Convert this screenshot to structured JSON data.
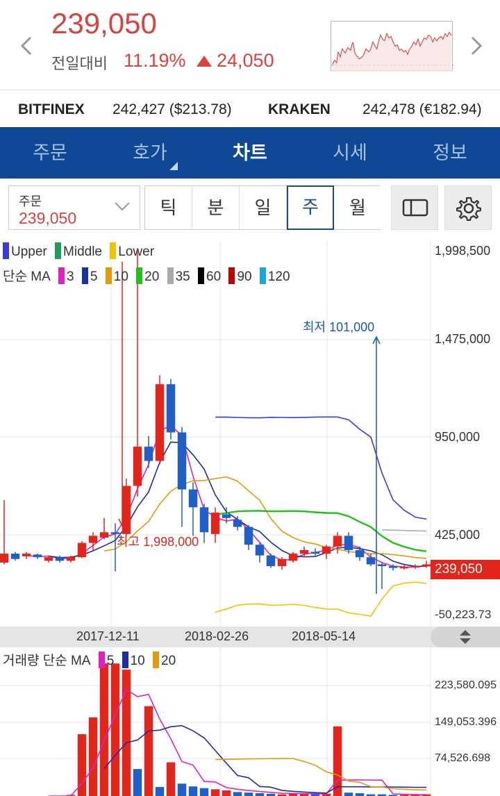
{
  "header": {
    "price": "239,050",
    "change_label": "전일대비",
    "change_pct": "11.19%",
    "change_amount": "24,050"
  },
  "exchanges": [
    {
      "name": "BITFINEX",
      "value": "242,427 ($213.78)"
    },
    {
      "name": "KRAKEN",
      "value": "242,478 (€182.94)"
    }
  ],
  "tabs": [
    {
      "label": "주문"
    },
    {
      "label": "호가"
    },
    {
      "label": "차트"
    },
    {
      "label": "시세"
    },
    {
      "label": "정보"
    }
  ],
  "order": {
    "label": "주문",
    "value": "239,050"
  },
  "periods": [
    "틱",
    "분",
    "일",
    "주",
    "월"
  ],
  "active_period": "주",
  "legend": {
    "bollinger": [
      {
        "name": "Upper",
        "color": "#3a3ad8"
      },
      {
        "name": "Middle",
        "color": "#1f9e5a"
      },
      {
        "name": "Lower",
        "color": "#f0c400"
      }
    ],
    "ma_label": "단순 MA",
    "ma": [
      {
        "name": "3",
        "color": "#e020c0"
      },
      {
        "name": "5",
        "color": "#1a2fa0"
      },
      {
        "name": "10",
        "color": "#e39a0a"
      },
      {
        "name": "20",
        "color": "#22c01a"
      },
      {
        "name": "35",
        "color": "#aaaaaa"
      },
      {
        "name": "60",
        "color": "#000000"
      },
      {
        "name": "90",
        "color": "#c00000"
      },
      {
        "name": "120",
        "color": "#19a6e6"
      }
    ]
  },
  "annotations": {
    "low": "최저 101,000",
    "high": "최고 1,998,000"
  },
  "current_price_tag": "239,050",
  "dates": [
    "2017-12-11",
    "2018-02-26",
    "2018-05-14"
  ],
  "volume_legend": {
    "label": "거래량 단순 MA",
    "ma": [
      {
        "name": "5",
        "color": "#e020c0"
      },
      {
        "name": "10",
        "color": "#1a2fa0"
      },
      {
        "name": "20",
        "color": "#e39a0a"
      }
    ]
  },
  "chart_data": {
    "type": "candlestick",
    "y_ticks": [
      "1,998,500",
      "1,475,000",
      "950,000",
      "425,000",
      "-50,223.73"
    ],
    "ylim": [
      -50223.73,
      1998500
    ],
    "candles": [
      {
        "o": 250000,
        "c": 300000,
        "h": 600000,
        "l": 240000,
        "up": true
      },
      {
        "o": 300000,
        "c": 270000,
        "h": 310000,
        "l": 260000,
        "up": false
      },
      {
        "o": 285000,
        "c": 300000,
        "h": 310000,
        "l": 270000,
        "up": true
      },
      {
        "o": 295000,
        "c": 280000,
        "h": 300000,
        "l": 270000,
        "up": false
      },
      {
        "o": 260000,
        "c": 280000,
        "h": 290000,
        "l": 250000,
        "up": true
      },
      {
        "o": 280000,
        "c": 260000,
        "h": 290000,
        "l": 250000,
        "up": false
      },
      {
        "o": 260000,
        "c": 280000,
        "h": 290000,
        "l": 250000,
        "up": true
      },
      {
        "o": 280000,
        "c": 360000,
        "h": 370000,
        "l": 275000,
        "up": true
      },
      {
        "o": 360000,
        "c": 400000,
        "h": 420000,
        "l": 320000,
        "up": true
      },
      {
        "o": 390000,
        "c": 420000,
        "h": 500000,
        "l": 380000,
        "up": true
      },
      {
        "o": 420000,
        "c": 410000,
        "h": 470000,
        "l": 200000,
        "up": false
      },
      {
        "o": 410000,
        "c": 680000,
        "h": 720000,
        "l": 400000,
        "up": true
      },
      {
        "o": 680000,
        "c": 900000,
        "h": 1998000,
        "l": 620000,
        "up": true
      },
      {
        "o": 900000,
        "c": 820000,
        "h": 960000,
        "l": 780000,
        "up": false
      },
      {
        "o": 820000,
        "c": 1250000,
        "h": 1300000,
        "l": 800000,
        "up": true
      },
      {
        "o": 1250000,
        "c": 980000,
        "h": 1280000,
        "l": 940000,
        "up": false
      },
      {
        "o": 980000,
        "c": 660000,
        "h": 1010000,
        "l": 450000,
        "up": false
      },
      {
        "o": 660000,
        "c": 560000,
        "h": 700000,
        "l": 400000,
        "up": false
      },
      {
        "o": 560000,
        "c": 420000,
        "h": 580000,
        "l": 360000,
        "up": false
      },
      {
        "o": 410000,
        "c": 530000,
        "h": 560000,
        "l": 360000,
        "up": true
      },
      {
        "o": 520000,
        "c": 500000,
        "h": 560000,
        "l": 470000,
        "up": false
      },
      {
        "o": 490000,
        "c": 450000,
        "h": 510000,
        "l": 430000,
        "up": false
      },
      {
        "o": 450000,
        "c": 350000,
        "h": 460000,
        "l": 320000,
        "up": false
      },
      {
        "o": 350000,
        "c": 290000,
        "h": 360000,
        "l": 250000,
        "up": false
      },
      {
        "o": 290000,
        "c": 230000,
        "h": 300000,
        "l": 220000,
        "up": false
      },
      {
        "o": 230000,
        "c": 270000,
        "h": 280000,
        "l": 210000,
        "up": true
      },
      {
        "o": 260000,
        "c": 300000,
        "h": 310000,
        "l": 250000,
        "up": true
      },
      {
        "o": 300000,
        "c": 320000,
        "h": 340000,
        "l": 280000,
        "up": true
      },
      {
        "o": 310000,
        "c": 300000,
        "h": 330000,
        "l": 290000,
        "up": false
      },
      {
        "o": 300000,
        "c": 340000,
        "h": 350000,
        "l": 270000,
        "up": true
      },
      {
        "o": 340000,
        "c": 400000,
        "h": 420000,
        "l": 300000,
        "up": true
      },
      {
        "o": 400000,
        "c": 320000,
        "h": 420000,
        "l": 300000,
        "up": false
      },
      {
        "o": 320000,
        "c": 280000,
        "h": 340000,
        "l": 260000,
        "up": false
      },
      {
        "o": 280000,
        "c": 240000,
        "h": 300000,
        "l": 230000,
        "up": false
      },
      {
        "o": 240000,
        "c": 230000,
        "h": 250000,
        "l": 101000,
        "up": false
      },
      {
        "o": 230000,
        "c": 220000,
        "h": 240000,
        "l": 205000,
        "up": false
      },
      {
        "o": 220000,
        "c": 225000,
        "h": 235000,
        "l": 210000,
        "up": true
      },
      {
        "o": 225000,
        "c": 230000,
        "h": 240000,
        "l": 215000,
        "up": true
      },
      {
        "o": 228000,
        "c": 240000,
        "h": 260000,
        "l": 220000,
        "up": true
      }
    ],
    "volume_y_ticks": [
      "223,580.095",
      "149,053.396",
      "74,526.698"
    ],
    "volume_ylim": [
      0,
      240000
    ],
    "volumes": [
      {
        "v": 0,
        "up": true
      },
      {
        "v": 0,
        "up": true
      },
      {
        "v": 0,
        "up": true
      },
      {
        "v": 0,
        "up": true
      },
      {
        "v": 0,
        "up": true
      },
      {
        "v": 0,
        "up": true
      },
      {
        "v": 2000,
        "up": true
      },
      {
        "v": 110000,
        "up": true
      },
      {
        "v": 140000,
        "up": true
      },
      {
        "v": 236000,
        "up": true
      },
      {
        "v": 236000,
        "up": true
      },
      {
        "v": 225000,
        "up": true
      },
      {
        "v": 48000,
        "up": false
      },
      {
        "v": 160000,
        "up": true
      },
      {
        "v": 16000,
        "up": false
      },
      {
        "v": 60000,
        "up": true
      },
      {
        "v": 22000,
        "up": false
      },
      {
        "v": 17000,
        "up": false
      },
      {
        "v": 14000,
        "up": false
      },
      {
        "v": 12000,
        "up": true
      },
      {
        "v": 10000,
        "up": true
      },
      {
        "v": 7000,
        "up": false
      },
      {
        "v": 6000,
        "up": false
      },
      {
        "v": 5000,
        "up": false
      },
      {
        "v": 4000,
        "up": false
      },
      {
        "v": 3000,
        "up": true
      },
      {
        "v": 5000,
        "up": true
      },
      {
        "v": 4000,
        "up": true
      },
      {
        "v": 4000,
        "up": false
      },
      {
        "v": 4000,
        "up": true
      },
      {
        "v": 124000,
        "up": true
      },
      {
        "v": 6000,
        "up": false
      },
      {
        "v": 5000,
        "up": false
      },
      {
        "v": 3000,
        "up": false
      },
      {
        "v": 3000,
        "up": false
      },
      {
        "v": 2000,
        "up": false
      },
      {
        "v": 2000,
        "up": true
      },
      {
        "v": 2000,
        "up": true
      },
      {
        "v": 3000,
        "up": true
      }
    ]
  }
}
